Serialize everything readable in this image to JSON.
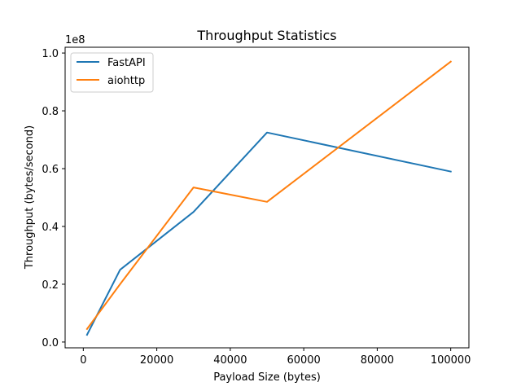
{
  "chart_data": {
    "type": "line",
    "title": "Throughput Statistics",
    "xlabel": "Payload Size (bytes)",
    "ylabel": "Throughput (bytes/second)",
    "offset_text": "1e8",
    "x": [
      1000,
      10000,
      30000,
      50000,
      100000
    ],
    "xlim": [
      -4950,
      104950
    ],
    "ylim": [
      -0.02,
      1.02
    ],
    "xticks": [
      0,
      20000,
      40000,
      60000,
      80000,
      100000
    ],
    "xtick_labels": [
      "0",
      "20000",
      "40000",
      "60000",
      "80000",
      "100000"
    ],
    "yticks": [
      0.0,
      0.2,
      0.4,
      0.6,
      0.8,
      1.0
    ],
    "ytick_labels": [
      "0.0",
      "0.2",
      "0.4",
      "0.6",
      "0.8",
      "1.0"
    ],
    "grid": false,
    "legend_position": "upper-left",
    "series": [
      {
        "name": "FastAPI",
        "color": "#1f77b4",
        "values": [
          0.025,
          0.25,
          0.45,
          0.725,
          0.59
        ]
      },
      {
        "name": "aiohttp",
        "color": "#ff7f0e",
        "values": [
          0.045,
          0.2,
          0.535,
          0.485,
          0.97
        ]
      }
    ]
  }
}
